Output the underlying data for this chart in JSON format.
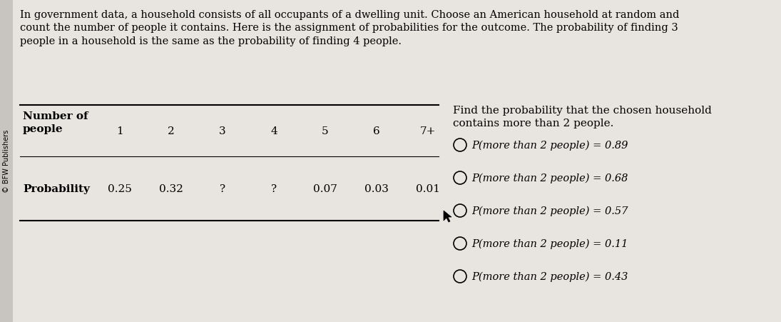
{
  "bg_color": "#e8e4df",
  "sidebar_text": "© BFW Publishers",
  "paragraph_text": "In government data, a household consists of all occupants of a dwelling unit. Choose an American household at random and\ncount the number of people it contains. Here is the assignment of probabilities for the outcome. The probability of finding 3\npeople in a household is the same as the probability of finding 4 people.",
  "table_header_col1_line1": "Number of",
  "table_header_col1_line2": "people",
  "table_header_values": [
    "1",
    "2",
    "3",
    "4",
    "5",
    "6",
    "7+"
  ],
  "table_row1_label": "Probability",
  "table_row1_values": [
    "0.25",
    "0.32",
    "?",
    "?",
    "0.07",
    "0.03",
    "0.01"
  ],
  "question_line1": "Find the probability that the chosen household",
  "question_line2": "contains more than 2 people.",
  "options": [
    "P(more than 2 people) = 0.89",
    "P(more than 2 people) = 0.68",
    "P(more than 2 people) = 0.57",
    "P(more than 2 people) = 0.11",
    "P(more than 2 people) = 0.43"
  ],
  "font_size_para": 10.5,
  "font_size_table_label": 11,
  "font_size_table_val": 11,
  "font_size_options": 10.5,
  "font_size_question": 11,
  "font_size_sidebar": 7
}
